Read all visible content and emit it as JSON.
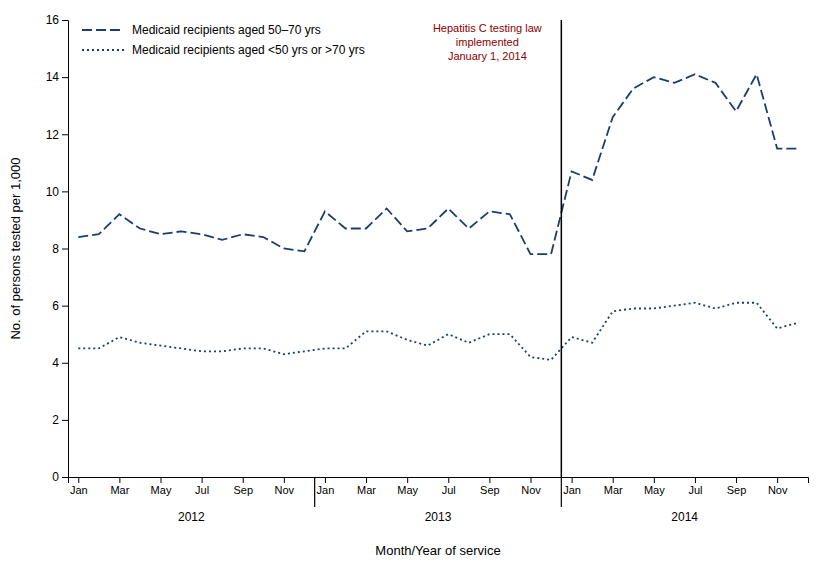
{
  "chart_data": {
    "type": "line",
    "xlabel": "Month/Year of service",
    "ylabel": "No. of persons tested per 1,000",
    "categories": [
      "Jan",
      null,
      "Mar",
      null,
      "May",
      null,
      "Jul",
      null,
      "Sep",
      null,
      "Nov",
      null,
      "Jan",
      null,
      "Mar",
      null,
      "May",
      null,
      "Jul",
      null,
      "Sep",
      null,
      "Nov",
      null,
      "Jan",
      null,
      "Mar",
      null,
      "May",
      null,
      "Jul",
      null,
      "Sep",
      null,
      "Nov",
      null
    ],
    "category_groups": [
      {
        "label": "2012",
        "start": 0,
        "end": 11
      },
      {
        "label": "2013",
        "start": 12,
        "end": 23
      },
      {
        "label": "2014",
        "start": 24,
        "end": 35
      }
    ],
    "series": [
      {
        "name": "Medicaid recipients aged 50–70 yrs",
        "color": "#1A3E6E",
        "line_style": "dashed",
        "values": [
          8.4,
          8.5,
          9.2,
          8.7,
          8.5,
          8.6,
          8.5,
          8.3,
          8.5,
          8.4,
          8.0,
          7.9,
          9.3,
          8.7,
          8.7,
          9.4,
          8.6,
          8.7,
          9.4,
          8.7,
          9.3,
          9.2,
          7.8,
          7.8,
          10.7,
          10.4,
          12.6,
          13.6,
          14.0,
          13.8,
          14.1,
          13.8,
          12.8,
          14.1,
          11.5,
          11.5
        ]
      },
      {
        "name": "Medicaid recipients aged <50 yrs or >70 yrs",
        "color": "#1A3E6E",
        "line_style": "dotted",
        "values": [
          4.5,
          4.5,
          4.9,
          4.7,
          4.6,
          4.5,
          4.4,
          4.4,
          4.5,
          4.5,
          4.3,
          4.4,
          4.5,
          4.5,
          5.1,
          5.1,
          4.8,
          4.6,
          5.0,
          4.7,
          5.0,
          5.0,
          4.2,
          4.1,
          4.9,
          4.7,
          5.8,
          5.9,
          5.9,
          6.0,
          6.1,
          5.9,
          6.1,
          6.1,
          5.2,
          5.4
        ]
      }
    ],
    "annotations": [
      {
        "text": "Hepatitis C testing law\nimplemented\nJanuary 1, 2014",
        "category": 24,
        "color": "#8B0000"
      }
    ],
    "ylim": [
      0,
      16
    ],
    "yticks": [
      0,
      2,
      4,
      6,
      8,
      10,
      12,
      14,
      16
    ],
    "grid": false,
    "legend": "upper left"
  }
}
